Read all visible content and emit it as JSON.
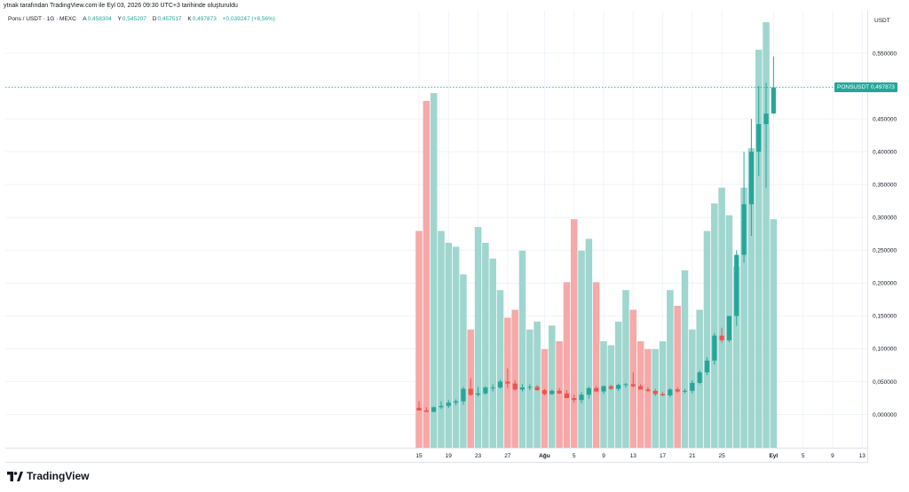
{
  "header": {
    "credit": "ytnak tarafından TradingView.com ile Eyl 03, 2026 09:30 UTC+3 tarihinde oluşturuldu",
    "symbol": "Pons / USDT · 1G · MEXC",
    "ohlc": {
      "a_label": "A",
      "a_value": "0,458304",
      "y_label": "Y",
      "y_value": "0,545207",
      "d_label": "D",
      "d_value": "0,457517",
      "k_label": "K",
      "k_value": "0,497873",
      "change": "+0,039247 (+8,56%)"
    }
  },
  "axis": {
    "currency": "USDT"
  },
  "price_tag": {
    "symbol": "PONSUSDT",
    "value": "0,497873"
  },
  "brand": {
    "name": "TradingView",
    "icon": "tradingview-logo-icon"
  },
  "colors": {
    "up": "#26a69a",
    "down": "#ef5350",
    "vol_up": "#9fd6cf",
    "vol_down": "#f5a9a8",
    "grid": "#f0f3fa"
  },
  "chart_data": {
    "type": "candlestick",
    "y_axis": {
      "min": 0,
      "max": 0.55,
      "position": "right",
      "ticks": [
        0,
        0.05,
        0.1,
        0.15,
        0.2,
        0.25,
        0.3,
        0.35,
        0.4,
        0.45,
        0.5,
        0.55
      ],
      "tick_labels": [
        "0,000000",
        "0,050000",
        "0,100000",
        "0,150000",
        "0,200000",
        "0,250000",
        "0,300000",
        "0,350000",
        "0,400000",
        "0,450000",
        "0,500000",
        "0,550000"
      ]
    },
    "x_axis": {
      "tick_labels": [
        "15",
        "19",
        "23",
        "27",
        "Ağu",
        "5",
        "9",
        "13",
        "17",
        "21",
        "25",
        "Eyl",
        "5",
        "9",
        "13"
      ],
      "tick_bar_index": [
        0,
        4,
        8,
        12,
        17,
        21,
        25,
        29,
        33,
        37,
        41,
        48,
        52,
        56,
        60
      ]
    },
    "grid": true,
    "last_price": 0.497873,
    "candles": [
      {
        "o": 0.01,
        "h": 0.02,
        "l": 0.006,
        "c": 0.006
      },
      {
        "o": 0.006,
        "h": 0.011,
        "l": 0.004,
        "c": 0.004
      },
      {
        "o": 0.004,
        "h": 0.012,
        "l": 0.003,
        "c": 0.011
      },
      {
        "o": 0.011,
        "h": 0.02,
        "l": 0.008,
        "c": 0.013
      },
      {
        "o": 0.013,
        "h": 0.022,
        "l": 0.01,
        "c": 0.018
      },
      {
        "o": 0.018,
        "h": 0.023,
        "l": 0.014,
        "c": 0.02
      },
      {
        "o": 0.02,
        "h": 0.042,
        "l": 0.015,
        "c": 0.039
      },
      {
        "o": 0.039,
        "h": 0.055,
        "l": 0.028,
        "c": 0.03
      },
      {
        "o": 0.03,
        "h": 0.042,
        "l": 0.027,
        "c": 0.032
      },
      {
        "o": 0.032,
        "h": 0.043,
        "l": 0.03,
        "c": 0.041
      },
      {
        "o": 0.041,
        "h": 0.046,
        "l": 0.035,
        "c": 0.041
      },
      {
        "o": 0.041,
        "h": 0.053,
        "l": 0.039,
        "c": 0.05
      },
      {
        "o": 0.05,
        "h": 0.07,
        "l": 0.04,
        "c": 0.047
      },
      {
        "o": 0.047,
        "h": 0.052,
        "l": 0.036,
        "c": 0.038
      },
      {
        "o": 0.038,
        "h": 0.046,
        "l": 0.035,
        "c": 0.041
      },
      {
        "o": 0.041,
        "h": 0.046,
        "l": 0.037,
        "c": 0.042
      },
      {
        "o": 0.042,
        "h": 0.045,
        "l": 0.036,
        "c": 0.037
      },
      {
        "o": 0.037,
        "h": 0.039,
        "l": 0.029,
        "c": 0.031
      },
      {
        "o": 0.031,
        "h": 0.038,
        "l": 0.03,
        "c": 0.036
      },
      {
        "o": 0.036,
        "h": 0.04,
        "l": 0.031,
        "c": 0.032
      },
      {
        "o": 0.032,
        "h": 0.037,
        "l": 0.028,
        "c": 0.025
      },
      {
        "o": 0.025,
        "h": 0.03,
        "l": 0.018,
        "c": 0.022
      },
      {
        "o": 0.022,
        "h": 0.034,
        "l": 0.017,
        "c": 0.03
      },
      {
        "o": 0.03,
        "h": 0.042,
        "l": 0.024,
        "c": 0.04
      },
      {
        "o": 0.04,
        "h": 0.043,
        "l": 0.034,
        "c": 0.035
      },
      {
        "o": 0.035,
        "h": 0.044,
        "l": 0.031,
        "c": 0.043
      },
      {
        "o": 0.043,
        "h": 0.045,
        "l": 0.037,
        "c": 0.039
      },
      {
        "o": 0.039,
        "h": 0.047,
        "l": 0.036,
        "c": 0.045
      },
      {
        "o": 0.045,
        "h": 0.048,
        "l": 0.041,
        "c": 0.046
      },
      {
        "o": 0.046,
        "h": 0.064,
        "l": 0.041,
        "c": 0.043
      },
      {
        "o": 0.043,
        "h": 0.046,
        "l": 0.038,
        "c": 0.038
      },
      {
        "o": 0.038,
        "h": 0.041,
        "l": 0.034,
        "c": 0.036
      },
      {
        "o": 0.036,
        "h": 0.039,
        "l": 0.028,
        "c": 0.031
      },
      {
        "o": 0.031,
        "h": 0.034,
        "l": 0.028,
        "c": 0.029
      },
      {
        "o": 0.029,
        "h": 0.04,
        "l": 0.026,
        "c": 0.038
      },
      {
        "o": 0.038,
        "h": 0.041,
        "l": 0.033,
        "c": 0.035
      },
      {
        "o": 0.035,
        "h": 0.039,
        "l": 0.032,
        "c": 0.036
      },
      {
        "o": 0.036,
        "h": 0.052,
        "l": 0.032,
        "c": 0.048
      },
      {
        "o": 0.048,
        "h": 0.067,
        "l": 0.046,
        "c": 0.064
      },
      {
        "o": 0.064,
        "h": 0.087,
        "l": 0.06,
        "c": 0.082
      },
      {
        "o": 0.082,
        "h": 0.124,
        "l": 0.076,
        "c": 0.12
      },
      {
        "o": 0.12,
        "h": 0.132,
        "l": 0.109,
        "c": 0.113
      },
      {
        "o": 0.113,
        "h": 0.148,
        "l": 0.11,
        "c": 0.15
      },
      {
        "o": 0.15,
        "h": 0.25,
        "l": 0.135,
        "c": 0.243
      },
      {
        "o": 0.243,
        "h": 0.4,
        "l": 0.231,
        "c": 0.32
      },
      {
        "o": 0.32,
        "h": 0.45,
        "l": 0.272,
        "c": 0.4
      },
      {
        "o": 0.4,
        "h": 0.5,
        "l": 0.363,
        "c": 0.442
      },
      {
        "o": 0.442,
        "h": 0.505,
        "l": 0.345,
        "c": 0.458
      },
      {
        "o": 0.458304,
        "h": 0.545207,
        "l": 0.457517,
        "c": 0.497873
      }
    ],
    "volume": [
      {
        "v": 0.055,
        "up": false
      },
      {
        "v": 0.088,
        "up": false
      },
      {
        "v": 0.09,
        "up": true
      },
      {
        "v": 0.055,
        "up": true
      },
      {
        "v": 0.052,
        "up": true
      },
      {
        "v": 0.051,
        "up": true
      },
      {
        "v": 0.044,
        "up": true
      },
      {
        "v": 0.03,
        "up": false
      },
      {
        "v": 0.056,
        "up": true
      },
      {
        "v": 0.052,
        "up": true
      },
      {
        "v": 0.048,
        "up": true
      },
      {
        "v": 0.04,
        "up": true
      },
      {
        "v": 0.033,
        "up": false
      },
      {
        "v": 0.035,
        "up": false
      },
      {
        "v": 0.05,
        "up": true
      },
      {
        "v": 0.03,
        "up": true
      },
      {
        "v": 0.032,
        "up": true
      },
      {
        "v": 0.025,
        "up": false
      },
      {
        "v": 0.031,
        "up": true
      },
      {
        "v": 0.027,
        "up": false
      },
      {
        "v": 0.042,
        "up": false
      },
      {
        "v": 0.058,
        "up": false
      },
      {
        "v": 0.05,
        "up": true
      },
      {
        "v": 0.053,
        "up": true
      },
      {
        "v": 0.042,
        "up": false
      },
      {
        "v": 0.027,
        "up": true
      },
      {
        "v": 0.026,
        "up": true
      },
      {
        "v": 0.032,
        "up": true
      },
      {
        "v": 0.04,
        "up": true
      },
      {
        "v": 0.035,
        "up": false
      },
      {
        "v": 0.027,
        "up": false
      },
      {
        "v": 0.025,
        "up": false
      },
      {
        "v": 0.025,
        "up": true
      },
      {
        "v": 0.027,
        "up": true
      },
      {
        "v": 0.04,
        "up": true
      },
      {
        "v": 0.036,
        "up": false
      },
      {
        "v": 0.045,
        "up": true
      },
      {
        "v": 0.03,
        "up": true
      },
      {
        "v": 0.035,
        "up": true
      },
      {
        "v": 0.055,
        "up": true
      },
      {
        "v": 0.062,
        "up": true
      },
      {
        "v": 0.066,
        "up": true
      },
      {
        "v": 0.059,
        "up": true
      },
      {
        "v": 0.046,
        "up": true
      },
      {
        "v": 0.066,
        "up": true
      },
      {
        "v": 0.076,
        "up": true
      },
      {
        "v": 0.101,
        "up": true
      },
      {
        "v": 0.108,
        "up": true
      },
      {
        "v": 0.058,
        "up": true
      }
    ]
  }
}
